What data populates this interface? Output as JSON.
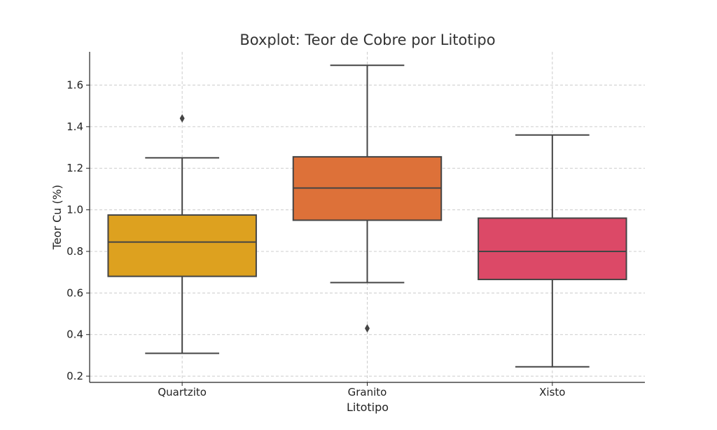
{
  "chart_data": {
    "type": "boxplot",
    "title": "Boxplot: Teor de Cobre por Litotipo",
    "xlabel": "Litotipo",
    "ylabel": "Teor Cu (%)",
    "ylim": [
      0.17,
      1.76
    ],
    "yticks": [
      0.2,
      0.4,
      0.6,
      0.8,
      1.0,
      1.2,
      1.4,
      1.6
    ],
    "grid": true,
    "categories": [
      "Quartzito",
      "Granito",
      "Xisto"
    ],
    "boxes": [
      {
        "category": "Quartzito",
        "whisker_low": 0.31,
        "q1": 0.68,
        "median": 0.845,
        "q3": 0.975,
        "whisker_high": 1.25,
        "outliers": [
          1.44
        ],
        "color": "#DDA11F"
      },
      {
        "category": "Granito",
        "whisker_low": 0.65,
        "q1": 0.95,
        "median": 1.105,
        "q3": 1.255,
        "whisker_high": 1.695,
        "outliers": [
          0.43
        ],
        "color": "#DD7139"
      },
      {
        "category": "Xisto",
        "whisker_low": 0.245,
        "q1": 0.665,
        "median": 0.8,
        "q3": 0.96,
        "whisker_high": 1.36,
        "outliers": [],
        "color": "#DC4967"
      }
    ]
  }
}
